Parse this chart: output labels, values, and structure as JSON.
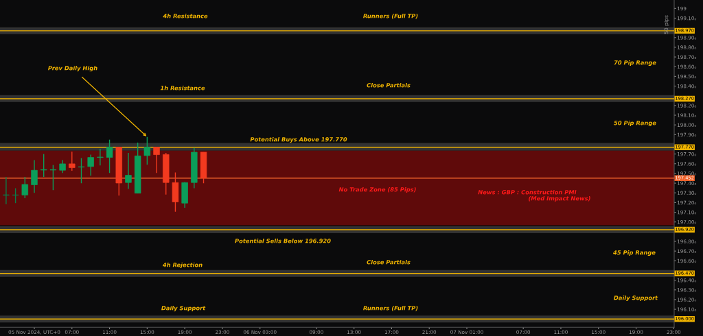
{
  "chart_data": {
    "type": "candlestick",
    "x": [
      "2024-11-05T00:00",
      "2024-11-05T01:00",
      "2024-11-05T02:00",
      "2024-11-05T03:00",
      "2024-11-05T04:00",
      "2024-11-05T05:00",
      "2024-11-05T06:00",
      "2024-11-05T07:00",
      "2024-11-05T08:00",
      "2024-11-05T09:00",
      "2024-11-05T10:00",
      "2024-11-05T11:00",
      "2024-11-05T12:00",
      "2024-11-05T13:00",
      "2024-11-05T14:00",
      "2024-11-05T15:00",
      "2024-11-05T16:00",
      "2024-11-05T17:00",
      "2024-11-05T18:00",
      "2024-11-05T19:00",
      "2024-11-05T20:00",
      "2024-11-05T21:00"
    ],
    "ohlc": [
      [
        197.275,
        197.465,
        197.183,
        197.28
      ],
      [
        197.275,
        197.347,
        197.194,
        197.275
      ],
      [
        197.277,
        197.465,
        197.246,
        197.387
      ],
      [
        197.383,
        197.637,
        197.3,
        197.533
      ],
      [
        197.535,
        197.7,
        197.465,
        197.535
      ],
      [
        197.535,
        197.587,
        197.329,
        197.535
      ],
      [
        197.533,
        197.637,
        197.505,
        197.599
      ],
      [
        197.599,
        197.724,
        197.528,
        197.559
      ],
      [
        197.565,
        197.658,
        197.399,
        197.565
      ],
      [
        197.571,
        197.693,
        197.477,
        197.665
      ],
      [
        197.665,
        197.754,
        197.583,
        197.665
      ],
      [
        197.665,
        197.848,
        197.505,
        197.771
      ],
      [
        197.771,
        197.771,
        197.272,
        197.401
      ],
      [
        197.406,
        197.712,
        197.34,
        197.481
      ],
      [
        197.296,
        197.818,
        197.296,
        197.681
      ],
      [
        197.684,
        197.876,
        197.59,
        197.771
      ],
      [
        197.771,
        197.771,
        197.505,
        197.693
      ],
      [
        197.695,
        197.712,
        197.282,
        197.406
      ],
      [
        197.406,
        197.51,
        197.105,
        197.206
      ],
      [
        197.194,
        197.411,
        197.147,
        197.406
      ],
      [
        197.406,
        197.764,
        197.347,
        197.719
      ],
      [
        197.719,
        197.719,
        197.399,
        197.452
      ]
    ],
    "colors": [
      "#0b7d4a",
      "#0b7d4a",
      "#0b9e5a",
      "#0b9e5a",
      "#0b9e5a",
      "#0b9e5a",
      "#0b9e5a",
      "#f23a1f",
      "#0b9e5a",
      "#0b9e5a",
      "#0b9e5a",
      "#0b9e5a",
      "#f23a1f",
      "#0b9e5a",
      "#0b9e5a",
      "#0b9e5a",
      "#f23a1f",
      "#f23a1f",
      "#f23a1f",
      "#0b9e5a",
      "#0b9e5a",
      "#f23a1f"
    ],
    "xlim": [
      "2024-11-04T23:21",
      "2024-11-07T23:03"
    ],
    "ylim": [
      195.915,
      199.287
    ],
    "xticks": [
      {
        "value": "2024-11-05T03:00",
        "label": "05 Nov 2024, UTC+0"
      },
      {
        "value": "2024-11-05T07:00",
        "label": "07:00"
      },
      {
        "value": "2024-11-05T11:00",
        "label": "11:00"
      },
      {
        "value": "2024-11-05T15:00",
        "label": "15:00"
      },
      {
        "value": "2024-11-05T19:00",
        "label": "19:00"
      },
      {
        "value": "2024-11-05T23:00",
        "label": "23:00"
      },
      {
        "value": "2024-11-06T03:00",
        "label": "06 Nov 03:00"
      },
      {
        "value": "2024-11-06T09:00",
        "label": "09:00"
      },
      {
        "value": "2024-11-06T13:00",
        "label": "13:00"
      },
      {
        "value": "2024-11-06T17:00",
        "label": "17:00"
      },
      {
        "value": "2024-11-06T21:00",
        "label": "21:00"
      },
      {
        "value": "2024-11-07T01:00",
        "label": "07 Nov 01:00"
      },
      {
        "value": "2024-11-07T07:00",
        "label": "07:00"
      },
      {
        "value": "2024-11-07T11:00",
        "label": "11:00"
      },
      {
        "value": "2024-11-07T15:00",
        "label": "15:00"
      },
      {
        "value": "2024-11-07T19:00",
        "label": "19:00"
      },
      {
        "value": "2024-11-07T23:00",
        "label": "23:00"
      }
    ],
    "yticks": [
      {
        "value": 196.1,
        "label": "196.10₀"
      },
      {
        "value": 196.2,
        "label": "196.20₀"
      },
      {
        "value": 196.3,
        "label": "196.30₀"
      },
      {
        "value": 196.4,
        "label": "196.40₀"
      },
      {
        "value": 196.6,
        "label": "196.60₀"
      },
      {
        "value": 196.7,
        "label": "196.70₀"
      },
      {
        "value": 196.8,
        "label": "196.80₀"
      },
      {
        "value": 197.0,
        "label": "197.00₀"
      },
      {
        "value": 197.1,
        "label": "197.10₀"
      },
      {
        "value": 197.2,
        "label": "197.20₀"
      },
      {
        "value": 197.3,
        "label": "197.30₀"
      },
      {
        "value": 197.4,
        "label": "197.40₀"
      },
      {
        "value": 197.5,
        "label": "197.50₀"
      },
      {
        "value": 197.6,
        "label": "197.60₀"
      },
      {
        "value": 197.7,
        "label": "197.70₀"
      },
      {
        "value": 197.9,
        "label": "197.90₀"
      },
      {
        "value": 198.0,
        "label": "198.00₀"
      },
      {
        "value": 198.1,
        "label": "198.10₀"
      },
      {
        "value": 198.2,
        "label": "198.20₀"
      },
      {
        "value": 198.4,
        "label": "198.40₀"
      },
      {
        "value": 198.5,
        "label": "198.50₀"
      },
      {
        "value": 198.6,
        "label": "198.60₀"
      },
      {
        "value": 198.7,
        "label": "198.70₀"
      },
      {
        "value": 198.8,
        "label": "198.80₀"
      },
      {
        "value": 198.9,
        "label": "198.90₀"
      },
      {
        "value": 199.1,
        "label": "199.10₀"
      },
      {
        "value": 199.2,
        "label": "199"
      }
    ],
    "bands": [
      {
        "axis": "y",
        "from": 198.935,
        "to": 199.005,
        "color": "#3a3a3a"
      },
      {
        "axis": "y",
        "from": 198.236,
        "to": 198.307,
        "color": "#3a3a3a"
      },
      {
        "axis": "y",
        "from": 197.735,
        "to": 197.813,
        "color": "#3a3a3a"
      },
      {
        "axis": "y",
        "from": 196.885,
        "to": 196.955,
        "color": "#3a3a3a"
      },
      {
        "axis": "y",
        "from": 196.435,
        "to": 196.505,
        "color": "#3a3a3a"
      },
      {
        "axis": "y",
        "from": 195.965,
        "to": 196.035,
        "color": "#3a3a3a"
      },
      {
        "axis": "y",
        "from": 196.966,
        "to": 197.735,
        "color": "#6e0b0b",
        "label": "No Trade Zone (85 Pips)"
      }
    ],
    "ref_lines": [
      {
        "axis": "y",
        "value": 198.97,
        "label": "198.970",
        "color": "#f0b400"
      },
      {
        "axis": "y",
        "value": 198.27,
        "label": "198.270",
        "color": "#f0b400"
      },
      {
        "axis": "y",
        "value": 197.77,
        "label": "197.770",
        "color": "#f0b400"
      },
      {
        "axis": "y",
        "value": 197.452,
        "label": "197.452",
        "color": "#f0622a"
      },
      {
        "axis": "y",
        "value": 196.92,
        "label": "196.920",
        "color": "#f0b400"
      },
      {
        "axis": "y",
        "value": 196.47,
        "label": "196.470",
        "color": "#f0b400"
      },
      {
        "axis": "y",
        "value": 196.0,
        "label": "196.000",
        "color": "#f0b400"
      }
    ],
    "annotations": [
      "4h Resistance",
      "Runners (Full TP)",
      {
        "text": "Prev Daily High",
        "x": "2024-11-05T15:00",
        "y": 197.876
      },
      "1h Resistance",
      "Close Partials",
      "70 Pip Range",
      "50 Pip Range",
      "Potential Buys Above 197.770",
      "News : GBP : Construction PMI",
      "(Med Impact News)",
      "Potential Sells Below 196.920",
      "45 Pip Range",
      "4h Rejection",
      "Close Partials",
      "Daily Support",
      "Daily Support",
      "Runners (Full TP)",
      "50 pips"
    ]
  }
}
